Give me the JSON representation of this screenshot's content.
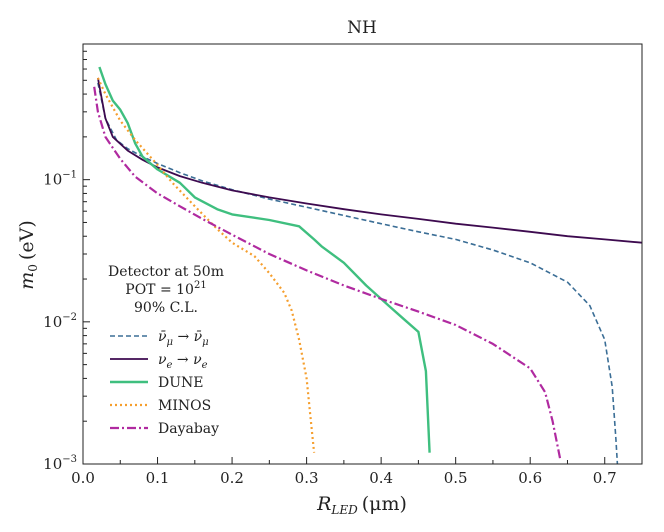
{
  "chart_data": {
    "type": "line",
    "title": "NH",
    "xlabel": "R_LED (μm)",
    "xlabel_main": "R",
    "xlabel_sub": "LED",
    "xlabel_unit": "(μm)",
    "ylabel": "m_0 (eV)",
    "ylabel_main": "m",
    "ylabel_sub": "0",
    "ylabel_unit": "(eV)",
    "xlim": [
      0.0,
      0.75
    ],
    "ylim": [
      0.001,
      0.9
    ],
    "yscale": "log",
    "xticks": [
      0.0,
      0.1,
      0.2,
      0.3,
      0.4,
      0.5,
      0.6,
      0.7
    ],
    "xtick_labels": [
      "0.0",
      "0.1",
      "0.2",
      "0.3",
      "0.4",
      "0.5",
      "0.6",
      "0.7"
    ],
    "yticks": [
      {
        "value": 0.1,
        "base": "10",
        "exp": "−1"
      },
      {
        "value": 0.01,
        "base": "10",
        "exp": "−2"
      },
      {
        "value": 0.001,
        "base": "10",
        "exp": "−3"
      }
    ],
    "annotation": {
      "line1": "Detector at 50m",
      "line2_base": "POT = 10",
      "line2_exp": "21",
      "line3": "90% C.L."
    },
    "legend_position": "lower-left",
    "series": [
      {
        "name": "ν̄μ → ν̄μ",
        "label_parts": {
          "a": "ν̄",
          "a_sub": "μ",
          "arrow": " → ",
          "b": "ν̄",
          "b_sub": "μ"
        },
        "color": "#3b6e96",
        "dash": "5,3",
        "width": 1.6,
        "points": [
          [
            0.02,
            0.48
          ],
          [
            0.03,
            0.27
          ],
          [
            0.045,
            0.19
          ],
          [
            0.06,
            0.165
          ],
          [
            0.08,
            0.145
          ],
          [
            0.1,
            0.13
          ],
          [
            0.13,
            0.112
          ],
          [
            0.16,
            0.098
          ],
          [
            0.2,
            0.085
          ],
          [
            0.25,
            0.073
          ],
          [
            0.3,
            0.064
          ],
          [
            0.35,
            0.056
          ],
          [
            0.4,
            0.049
          ],
          [
            0.45,
            0.043
          ],
          [
            0.5,
            0.038
          ],
          [
            0.55,
            0.032
          ],
          [
            0.6,
            0.026
          ],
          [
            0.65,
            0.019
          ],
          [
            0.68,
            0.013
          ],
          [
            0.7,
            0.0075
          ],
          [
            0.71,
            0.0035
          ],
          [
            0.715,
            0.0015
          ],
          [
            0.717,
            0.001
          ]
        ]
      },
      {
        "name": "νe → νe",
        "label_parts": {
          "a": "ν",
          "a_sub": "e",
          "arrow": " → ",
          "b": "ν",
          "b_sub": "e"
        },
        "color": "#3d0a4f",
        "dash": "",
        "width": 1.8,
        "points": [
          [
            0.02,
            0.52
          ],
          [
            0.03,
            0.27
          ],
          [
            0.04,
            0.2
          ],
          [
            0.06,
            0.16
          ],
          [
            0.08,
            0.138
          ],
          [
            0.1,
            0.122
          ],
          [
            0.13,
            0.106
          ],
          [
            0.16,
            0.095
          ],
          [
            0.2,
            0.084
          ],
          [
            0.25,
            0.075
          ],
          [
            0.3,
            0.068
          ],
          [
            0.35,
            0.062
          ],
          [
            0.4,
            0.057
          ],
          [
            0.45,
            0.053
          ],
          [
            0.5,
            0.049
          ],
          [
            0.55,
            0.046
          ],
          [
            0.6,
            0.043
          ],
          [
            0.65,
            0.04
          ],
          [
            0.7,
            0.038
          ],
          [
            0.75,
            0.036
          ]
        ]
      },
      {
        "name": "DUNE",
        "label_parts": {
          "a": "DUNE"
        },
        "color": "#3fbf7f",
        "dash": "",
        "width": 2.4,
        "points": [
          [
            0.022,
            0.62
          ],
          [
            0.03,
            0.47
          ],
          [
            0.04,
            0.36
          ],
          [
            0.05,
            0.31
          ],
          [
            0.06,
            0.25
          ],
          [
            0.07,
            0.18
          ],
          [
            0.08,
            0.145
          ],
          [
            0.1,
            0.118
          ],
          [
            0.13,
            0.095
          ],
          [
            0.15,
            0.075
          ],
          [
            0.18,
            0.062
          ],
          [
            0.2,
            0.057
          ],
          [
            0.25,
            0.052
          ],
          [
            0.29,
            0.047
          ],
          [
            0.31,
            0.038
          ],
          [
            0.32,
            0.034
          ],
          [
            0.35,
            0.026
          ],
          [
            0.38,
            0.018
          ],
          [
            0.41,
            0.013
          ],
          [
            0.43,
            0.0105
          ],
          [
            0.45,
            0.0085
          ],
          [
            0.46,
            0.0045
          ],
          [
            0.465,
            0.0012
          ]
        ]
      },
      {
        "name": "MINOS",
        "label_parts": {
          "a": "MINOS"
        },
        "color": "#f59e2d",
        "dash": "2,3",
        "width": 2.2,
        "points": [
          [
            0.02,
            0.52
          ],
          [
            0.03,
            0.4
          ],
          [
            0.05,
            0.26
          ],
          [
            0.07,
            0.19
          ],
          [
            0.1,
            0.127
          ],
          [
            0.12,
            0.095
          ],
          [
            0.15,
            0.065
          ],
          [
            0.18,
            0.045
          ],
          [
            0.2,
            0.036
          ],
          [
            0.23,
            0.029
          ],
          [
            0.25,
            0.022
          ],
          [
            0.27,
            0.016
          ],
          [
            0.28,
            0.012
          ],
          [
            0.29,
            0.0075
          ],
          [
            0.3,
            0.004
          ],
          [
            0.305,
            0.0022
          ],
          [
            0.31,
            0.0012
          ]
        ]
      },
      {
        "name": "Dayabay",
        "label_parts": {
          "a": "Dayabay"
        },
        "color": "#b02aa0",
        "dash": "9,3,2,3",
        "width": 2.2,
        "points": [
          [
            0.015,
            0.45
          ],
          [
            0.02,
            0.3
          ],
          [
            0.03,
            0.2
          ],
          [
            0.05,
            0.14
          ],
          [
            0.07,
            0.105
          ],
          [
            0.1,
            0.08
          ],
          [
            0.13,
            0.065
          ],
          [
            0.16,
            0.053
          ],
          [
            0.2,
            0.041
          ],
          [
            0.25,
            0.03
          ],
          [
            0.3,
            0.023
          ],
          [
            0.35,
            0.018
          ],
          [
            0.4,
            0.0145
          ],
          [
            0.45,
            0.0118
          ],
          [
            0.5,
            0.0095
          ],
          [
            0.55,
            0.007
          ],
          [
            0.6,
            0.0047
          ],
          [
            0.62,
            0.0032
          ],
          [
            0.63,
            0.002
          ],
          [
            0.64,
            0.0011
          ]
        ]
      }
    ]
  }
}
